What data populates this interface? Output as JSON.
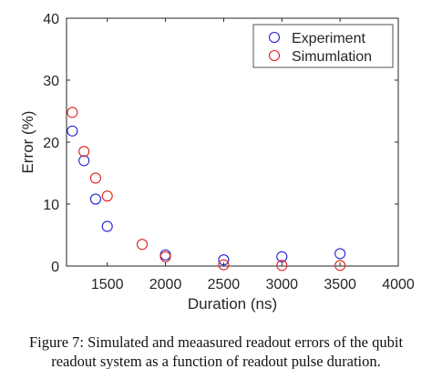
{
  "chart_data": {
    "type": "scatter",
    "xlabel": "Duration (ns)",
    "ylabel": "Error (%)",
    "xlim": [
      1150,
      4000
    ],
    "ylim": [
      0,
      40
    ],
    "xticks": [
      "1500",
      "2000",
      "2500",
      "3000",
      "3500",
      "4000"
    ],
    "yticks": [
      "0",
      "10",
      "20",
      "30",
      "40"
    ],
    "grid": false,
    "legend_position": "top-right",
    "marker": "open-circle",
    "series": [
      {
        "name": "Experiment",
        "color": "#1f1fd6",
        "points": [
          {
            "x": 1200,
            "y": 21.8
          },
          {
            "x": 1300,
            "y": 17.0
          },
          {
            "x": 1400,
            "y": 10.8
          },
          {
            "x": 1500,
            "y": 6.4
          },
          {
            "x": 2000,
            "y": 1.8
          },
          {
            "x": 2500,
            "y": 1.0
          },
          {
            "x": 3000,
            "y": 1.5
          },
          {
            "x": 3500,
            "y": 2.0
          }
        ]
      },
      {
        "name": "Simumlation",
        "color": "#e02020",
        "points": [
          {
            "x": 1200,
            "y": 24.8
          },
          {
            "x": 1300,
            "y": 18.5
          },
          {
            "x": 1400,
            "y": 14.2
          },
          {
            "x": 1500,
            "y": 11.3
          },
          {
            "x": 1800,
            "y": 3.5
          },
          {
            "x": 2000,
            "y": 1.5
          },
          {
            "x": 2500,
            "y": 0.2
          },
          {
            "x": 3000,
            "y": 0.1
          },
          {
            "x": 3500,
            "y": 0.1
          }
        ]
      }
    ]
  },
  "caption": {
    "line1": "Figure 7: Simulated and meaasured readout errors of the qubit",
    "line2": "readout system as a function of readout pulse duration."
  }
}
